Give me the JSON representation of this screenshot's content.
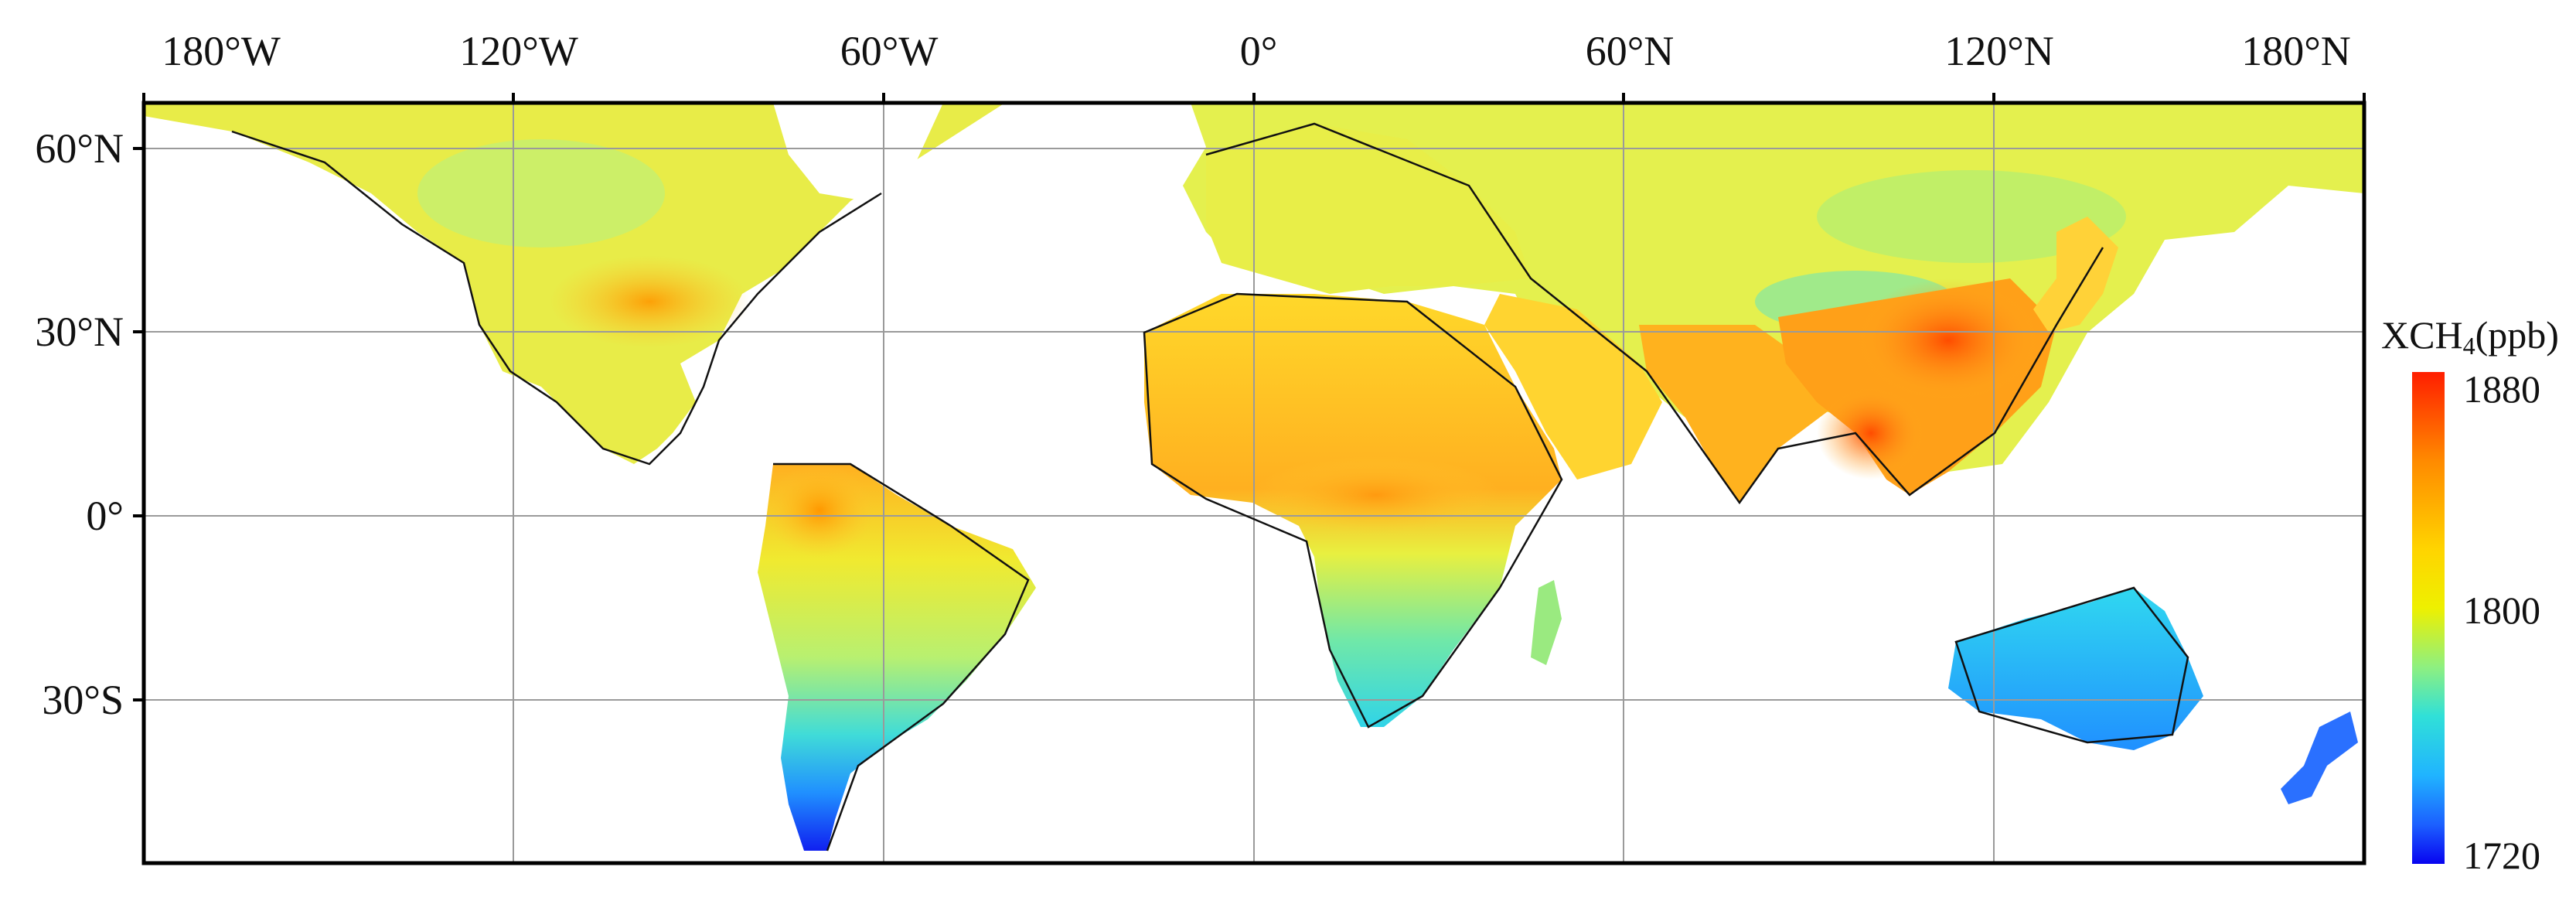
{
  "map": {
    "top_axis_labels": [
      "180°W",
      "120°W",
      "60°W",
      "0°",
      "60°N",
      "120°N",
      "180°N"
    ],
    "left_axis_labels": [
      "60°N",
      "30°N",
      "0°",
      "30°S"
    ],
    "colorbar": {
      "title_main": "XCH",
      "title_sub": "4",
      "title_unit": "(ppb)",
      "ticks": [
        "1880",
        "1800",
        "1720"
      ],
      "colors": [
        "#ff1e00",
        "#ff7a00",
        "#ffd400",
        "#f4f000",
        "#9ef07a",
        "#39e6c8",
        "#20c8ff",
        "#1f72ff",
        "#0a08f0"
      ]
    },
    "regions": [
      {
        "name": "north-america",
        "color": "#f0e34a"
      },
      {
        "name": "south-america",
        "color": "#c8f060"
      },
      {
        "name": "africa",
        "color": "#ffca2a"
      },
      {
        "name": "eurasia",
        "color": "#e4f04e"
      },
      {
        "name": "south-asia",
        "color": "#ffb21e"
      },
      {
        "name": "east-asia-hotspot",
        "color": "#ff6a10"
      },
      {
        "name": "australia",
        "color": "#28d2ff"
      },
      {
        "name": "southern-africa",
        "color": "#4ee6d0"
      },
      {
        "name": "patagonia",
        "color": "#2058ff"
      },
      {
        "name": "new-zealand",
        "color": "#2a70ff"
      }
    ]
  }
}
